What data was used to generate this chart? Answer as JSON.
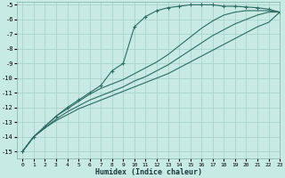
{
  "xlabel": "Humidex (Indice chaleur)",
  "ylabel": "",
  "xlim": [
    -0.5,
    23
  ],
  "ylim": [
    -15.5,
    -4.8
  ],
  "yticks": [
    -15,
    -14,
    -13,
    -12,
    -11,
    -10,
    -9,
    -8,
    -7,
    -6,
    -5
  ],
  "xticks": [
    0,
    1,
    2,
    3,
    4,
    5,
    6,
    7,
    8,
    9,
    10,
    11,
    12,
    13,
    14,
    15,
    16,
    17,
    18,
    19,
    20,
    21,
    22,
    23
  ],
  "bg_color": "#c8eae4",
  "line_color": "#2d6b63",
  "grid_color": "#aad4cc",
  "lines": [
    {
      "x": [
        0,
        1,
        2,
        3,
        4,
        5,
        6,
        7,
        8,
        9,
        10,
        11,
        12,
        13,
        14,
        15,
        16,
        17,
        18,
        19,
        20,
        21,
        22,
        23
      ],
      "y": [
        -15.0,
        -14.0,
        -13.3,
        -12.6,
        -12.0,
        -11.5,
        -11.0,
        -10.5,
        -9.5,
        -9.0,
        -6.5,
        -5.8,
        -5.4,
        -5.2,
        -5.1,
        -5.0,
        -5.0,
        -5.0,
        -5.1,
        -5.1,
        -5.15,
        -5.2,
        -5.3,
        -5.5
      ],
      "marker": true
    },
    {
      "x": [
        0,
        1,
        2,
        3,
        4,
        5,
        6,
        7,
        8,
        9,
        10,
        11,
        12,
        13,
        14,
        15,
        16,
        17,
        18,
        19,
        20,
        21,
        22,
        23
      ],
      "y": [
        -15.0,
        -14.0,
        -13.3,
        -12.6,
        -12.1,
        -11.6,
        -11.1,
        -10.7,
        -10.4,
        -10.1,
        -9.7,
        -9.3,
        -8.9,
        -8.4,
        -7.8,
        -7.2,
        -6.6,
        -6.1,
        -5.7,
        -5.5,
        -5.4,
        -5.4,
        -5.4,
        -5.5
      ],
      "marker": false
    },
    {
      "x": [
        0,
        1,
        2,
        3,
        4,
        5,
        6,
        7,
        8,
        9,
        10,
        11,
        12,
        13,
        14,
        15,
        16,
        17,
        18,
        19,
        20,
        21,
        22,
        23
      ],
      "y": [
        -15.0,
        -14.0,
        -13.4,
        -12.8,
        -12.3,
        -11.9,
        -11.5,
        -11.2,
        -10.9,
        -10.6,
        -10.2,
        -9.9,
        -9.5,
        -9.1,
        -8.6,
        -8.1,
        -7.6,
        -7.1,
        -6.7,
        -6.3,
        -6.0,
        -5.7,
        -5.5,
        -5.5
      ],
      "marker": false
    },
    {
      "x": [
        0,
        1,
        2,
        3,
        4,
        5,
        6,
        7,
        8,
        9,
        10,
        11,
        12,
        13,
        14,
        15,
        16,
        17,
        18,
        19,
        20,
        21,
        22,
        23
      ],
      "y": [
        -15.0,
        -14.0,
        -13.4,
        -12.9,
        -12.5,
        -12.1,
        -11.8,
        -11.5,
        -11.2,
        -10.9,
        -10.6,
        -10.3,
        -10.0,
        -9.7,
        -9.3,
        -8.9,
        -8.5,
        -8.1,
        -7.7,
        -7.3,
        -6.9,
        -6.5,
        -6.2,
        -5.5
      ],
      "marker": false
    }
  ]
}
